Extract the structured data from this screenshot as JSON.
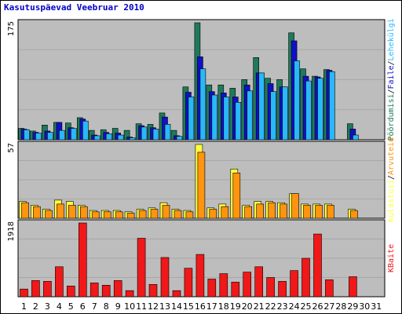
{
  "title": "Kasutuspäevad Veebruar 2010",
  "colors": {
    "panel_bg": "#bdbdbd",
    "grid": "#a8a8a8",
    "visits": "#1f7a5a",
    "pages": "#1010c8",
    "files": "#29b8f8",
    "hits_outline": "#ffff40",
    "hits": "#ff9410",
    "kbytes": "#f01818",
    "weekend_label": "#1f7a5a",
    "weekday_label": "#000000"
  },
  "chart_data": {
    "type": "bar",
    "days": [
      "1",
      "2",
      "3",
      "4",
      "5",
      "6",
      "7",
      "8",
      "9",
      "10",
      "11",
      "12",
      "13",
      "14",
      "15",
      "16",
      "17",
      "18",
      "19",
      "20",
      "21",
      "22",
      "23",
      "24",
      "25",
      "26",
      "27",
      "28",
      "29",
      "30",
      "31"
    ],
    "weekend_days": [
      "6",
      "7",
      "13",
      "14",
      "20",
      "21",
      "27",
      "28"
    ],
    "panels": [
      {
        "name": "top",
        "ymax_label": "175",
        "ymax": 175,
        "legend": [
          {
            "label": "Pöördumisi",
            "color": "#1f7a5a"
          },
          {
            "label": "Faile",
            "color": "#1010c8"
          },
          {
            "label": "Lehekülgi",
            "color": "#29b8f8"
          }
        ],
        "series": [
          {
            "name": "Pöördumisi",
            "values": [
              17,
              13,
              22,
              26,
              25,
              33,
              14,
              15,
              17,
              14,
              24,
              23,
              40,
              14,
              79,
              175,
              82,
              82,
              77,
              90,
              123,
              92,
              90,
              160,
              106,
              95,
              105,
              0,
              24,
              0,
              0
            ]
          },
          {
            "name": "Faile",
            "values": [
              16,
              11,
              13,
              26,
              18,
              31,
              7,
              11,
              10,
              4,
              21,
              18,
              34,
              6,
              71,
              124,
              72,
              70,
              64,
              82,
              100,
              84,
              79,
              148,
              95,
              94,
              104,
              0,
              16,
              0,
              0
            ]
          },
          {
            "name": "Lehekülgi",
            "values": [
              15,
              10,
              11,
              14,
              17,
              28,
              6,
              9,
              7,
              3,
              19,
              16,
              23,
              5,
              64,
              106,
              67,
              64,
              56,
              73,
              100,
              72,
              79,
              118,
              88,
              92,
              102,
              0,
              7,
              0,
              0
            ]
          }
        ]
      },
      {
        "name": "middle",
        "ymax_label": "57",
        "ymax": 57,
        "legend": [
          {
            "label": "Külastusi",
            "color": "#ffff40"
          },
          {
            "label": "Arvuteid",
            "color": "#ff9410"
          }
        ],
        "series": [
          {
            "name": "Külastusi",
            "values": [
              13,
              10,
              7,
              14,
              13,
              10,
              6,
              6,
              6,
              5,
              7,
              8,
              12,
              7,
              6,
              57,
              8,
              11,
              38,
              10,
              13,
              13,
              12,
              19,
              11,
              11,
              11,
              0,
              7,
              0,
              0
            ]
          },
          {
            "name": "Arvuteid",
            "values": [
              12,
              9,
              6,
              11,
              10,
              9,
              5,
              5,
              5,
              4,
              6,
              7,
              10,
              6,
              5,
              51,
              7,
              9,
              35,
              9,
              11,
              12,
              11,
              19,
              10,
              10,
              10,
              0,
              6,
              0,
              0
            ]
          }
        ]
      },
      {
        "name": "bottom",
        "ymax_label": "1918",
        "ymax": 1918,
        "legend": [
          {
            "label": "KBaite",
            "color": "#f01818"
          }
        ],
        "series": [
          {
            "name": "KBaite",
            "values": [
              200,
              420,
              400,
              780,
              280,
              1918,
              360,
              300,
              420,
              160,
              1520,
              320,
              1020,
              160,
              740,
              1100,
              460,
              600,
              380,
              640,
              780,
              500,
              400,
              680,
              1000,
              1630,
              440,
              0,
              520,
              0,
              0
            ]
          }
        ]
      }
    ]
  }
}
